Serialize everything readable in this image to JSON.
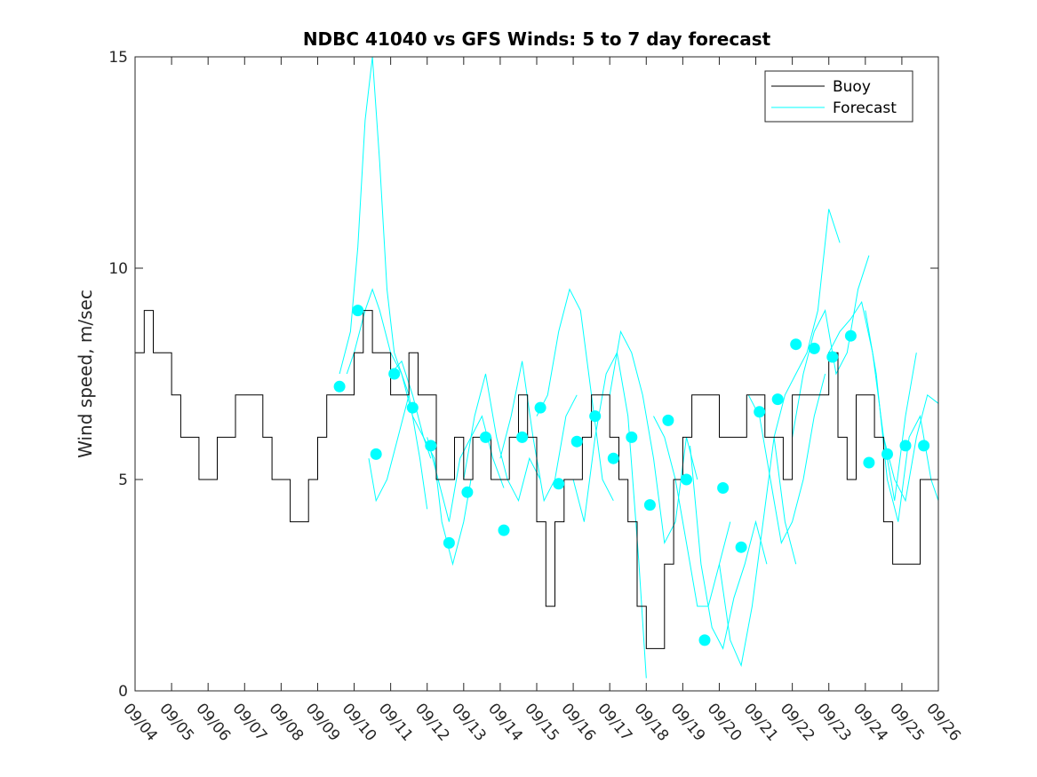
{
  "chart_data": {
    "type": "line",
    "title": "NDBC 41040 vs GFS Winds: 5 to 7 day forecast",
    "xlabel": "",
    "ylabel": "Wind speed, m/sec",
    "ylim": [
      0,
      15
    ],
    "yticks": [
      0,
      5,
      10,
      15
    ],
    "xlim": [
      0,
      22
    ],
    "xtick_labels": [
      "09/04",
      "09/05",
      "09/06",
      "09/07",
      "09/08",
      "09/09",
      "09/10",
      "09/11",
      "09/12",
      "09/13",
      "09/14",
      "09/15",
      "09/16",
      "09/17",
      "09/18",
      "09/19",
      "09/20",
      "09/21",
      "09/22",
      "09/23",
      "09/24",
      "09/25",
      "09/26"
    ],
    "legend": {
      "location": "top-right",
      "entries": [
        "Buoy",
        "Forecast"
      ]
    },
    "colors": {
      "buoy": "#000000",
      "forecast": "#00FFFF",
      "axes": "#262626"
    },
    "series": [
      {
        "name": "Buoy",
        "x": [
          0,
          0.25,
          0.5,
          0.75,
          1,
          1.25,
          1.5,
          1.75,
          2,
          2.25,
          2.5,
          2.75,
          3,
          3.25,
          3.5,
          3.75,
          4,
          4.25,
          4.5,
          4.75,
          5,
          5.25,
          5.5,
          5.75,
          6,
          6.25,
          6.5,
          6.75,
          7,
          7.25,
          7.5,
          7.75,
          8,
          8.25,
          8.5,
          8.75,
          9,
          9.25,
          9.5,
          9.75,
          10,
          10.25,
          10.5,
          10.75,
          11,
          11.25,
          11.5,
          11.75,
          12,
          12.25,
          12.5,
          12.75,
          13,
          13.25,
          13.5,
          13.75,
          14,
          14.25,
          14.5,
          14.75,
          15,
          15.25,
          15.5,
          15.75,
          16,
          16.25,
          16.5,
          16.75,
          17,
          17.25,
          17.5,
          17.75,
          18,
          18.25,
          18.5,
          18.75,
          19,
          19.25,
          19.5,
          19.75,
          20,
          20.25,
          20.5,
          20.75,
          21,
          21.25,
          21.5,
          21.75,
          22
        ],
        "y": [
          8,
          9,
          8,
          8,
          7,
          6,
          6,
          5,
          5,
          6,
          6,
          7,
          7,
          7,
          6,
          5,
          5,
          4,
          4,
          5,
          6,
          7,
          7,
          7,
          8,
          9,
          8,
          8,
          7,
          7,
          8,
          7,
          7,
          5,
          5,
          6,
          5,
          6,
          6,
          5,
          5,
          6,
          7,
          6,
          4,
          2,
          4,
          5,
          5,
          6,
          7,
          7,
          6,
          5,
          4,
          2,
          1,
          1,
          3,
          5,
          6,
          7,
          7,
          7,
          6,
          6,
          6,
          7,
          7,
          6,
          6,
          5,
          7,
          7,
          7,
          7,
          8,
          6,
          5,
          7,
          7,
          6,
          4,
          3,
          3,
          3,
          5,
          5,
          5
        ]
      },
      {
        "name": "Forecast",
        "runs": [
          {
            "x": [
              5.6,
              5.9,
              6.1,
              6.3,
              6.5,
              6.7,
              6.9,
              7.1,
              7.3,
              7.5
            ],
            "y": [
              7.5,
              8.5,
              10.5,
              13.5,
              15,
              12.5,
              9.5,
              8,
              7.5,
              7
            ]
          },
          {
            "x": [
              5.8,
              6.0,
              6.3,
              6.5,
              6.7,
              7.0,
              7.3,
              7.6,
              7.9,
              8.1
            ],
            "y": [
              7.5,
              8,
              9,
              9.5,
              9,
              8,
              7.5,
              6.5,
              6,
              5.5
            ]
          },
          {
            "x": [
              6.4,
              6.6,
              6.9,
              7.2,
              7.5,
              7.8,
              8.0
            ],
            "y": [
              5.5,
              4.5,
              5,
              6,
              7,
              5.5,
              4.3
            ]
          },
          {
            "x": [
              7.0,
              7.3,
              7.6,
              7.9,
              8.2,
              8.4,
              8.7,
              9.0,
              9.2
            ],
            "y": [
              7.5,
              7.8,
              7,
              6,
              5.5,
              4,
              3,
              4,
              5
            ]
          },
          {
            "x": [
              8.0,
              8.3,
              8.6,
              8.9,
              9.2,
              9.5,
              9.8,
              10.1
            ],
            "y": [
              6,
              5,
              4,
              5.5,
              6,
              6.5,
              5.5,
              4.8
            ]
          },
          {
            "x": [
              9.0,
              9.3,
              9.6,
              9.9,
              10.2,
              10.5,
              10.8,
              11.1
            ],
            "y": [
              5,
              6.5,
              7.5,
              6,
              5,
              4.5,
              5.5,
              5
            ]
          },
          {
            "x": [
              10.0,
              10.3,
              10.6,
              10.9,
              11.2,
              11.5,
              11.8,
              12.1
            ],
            "y": [
              5.5,
              6.5,
              7.8,
              6,
              4.5,
              5,
              6.5,
              7
            ]
          },
          {
            "x": [
              11.0,
              11.3,
              11.6,
              11.9,
              12.2,
              12.5,
              12.8,
              13.1
            ],
            "y": [
              6.5,
              7,
              8.5,
              9.5,
              9,
              7,
              5,
              4.5
            ]
          },
          {
            "x": [
              12.0,
              12.3,
              12.6,
              12.9,
              13.2,
              13.5,
              13.8,
              14.0
            ],
            "y": [
              5,
              4,
              6,
              7.5,
              8,
              6.5,
              3,
              0.3
            ]
          },
          {
            "x": [
              13.0,
              13.3,
              13.6,
              13.9,
              14.2,
              14.5,
              14.8,
              15.1,
              15.4
            ],
            "y": [
              7,
              8.5,
              8,
              7,
              5.5,
              3.5,
              4,
              6,
              5
            ]
          },
          {
            "x": [
              14.2,
              14.5,
              14.8,
              15.1,
              15.4,
              15.7,
              16.0,
              16.3
            ],
            "y": [
              6.5,
              6,
              5,
              3.5,
              2,
              2,
              3,
              4
            ]
          },
          {
            "x": [
              15.2,
              15.5,
              15.8,
              16.1,
              16.4,
              16.7,
              17.0,
              17.3
            ],
            "y": [
              5.8,
              3,
              1.5,
              1,
              2.2,
              3,
              4,
              3
            ]
          },
          {
            "x": [
              16.0,
              16.3,
              16.6,
              16.9,
              17.2,
              17.5,
              17.8,
              18.1
            ],
            "y": [
              3,
              1.2,
              0.6,
              2,
              4,
              6,
              4,
              3
            ]
          },
          {
            "x": [
              16.8,
              17.1,
              17.4,
              17.7,
              18.0,
              18.3,
              18.6,
              18.9
            ],
            "y": [
              7,
              6.5,
              5,
              3.5,
              4,
              5,
              6.5,
              7.5
            ]
          },
          {
            "x": [
              17.5,
              17.8,
              18.1,
              18.4,
              18.7,
              19.0,
              19.3
            ],
            "y": [
              6,
              7,
              7.5,
              8,
              9,
              11.4,
              10.6
            ]
          },
          {
            "x": [
              18.0,
              18.3,
              18.6,
              18.9,
              19.2,
              19.5,
              19.8,
              20.1
            ],
            "y": [
              6,
              7.5,
              8.5,
              9,
              7.5,
              8,
              9.5,
              10.3
            ]
          },
          {
            "x": [
              19.0,
              19.3,
              19.6,
              19.9,
              20.2,
              20.5,
              20.8,
              21.1,
              21.4
            ],
            "y": [
              8,
              8.5,
              8.8,
              9.2,
              8,
              6,
              4.5,
              6.5,
              8
            ]
          },
          {
            "x": [
              20.0,
              20.3,
              20.6,
              20.9,
              21.2,
              21.5,
              21.8,
              22.0
            ],
            "y": [
              9,
              7.5,
              5,
              4,
              6,
              6.5,
              5,
              4.5
            ]
          },
          {
            "x": [
              20.5,
              20.8,
              21.1,
              21.4,
              21.7,
              22.0
            ],
            "y": [
              6,
              5,
              4.5,
              6,
              7,
              6.8
            ]
          }
        ],
        "markers": {
          "x": [
            5.6,
            6.1,
            6.6,
            7.1,
            7.6,
            8.1,
            8.6,
            9.1,
            9.6,
            10.1,
            10.6,
            11.1,
            11.6,
            12.1,
            12.6,
            13.1,
            13.6,
            14.1,
            14.6,
            15.1,
            15.6,
            16.1,
            16.6,
            17.1,
            17.6,
            18.1,
            18.6,
            19.1,
            19.6,
            20.1,
            20.6,
            21.1,
            21.6
          ],
          "y": [
            7.2,
            9.0,
            5.6,
            7.5,
            6.7,
            5.8,
            3.5,
            4.7,
            6.0,
            3.8,
            6.0,
            6.7,
            4.9,
            5.9,
            6.5,
            5.5,
            6.0,
            4.4,
            6.4,
            5.0,
            1.2,
            4.8,
            3.4,
            6.6,
            6.9,
            8.2,
            8.1,
            7.9,
            8.4,
            5.4,
            5.6,
            5.8,
            5.8
          ]
        }
      }
    ]
  }
}
